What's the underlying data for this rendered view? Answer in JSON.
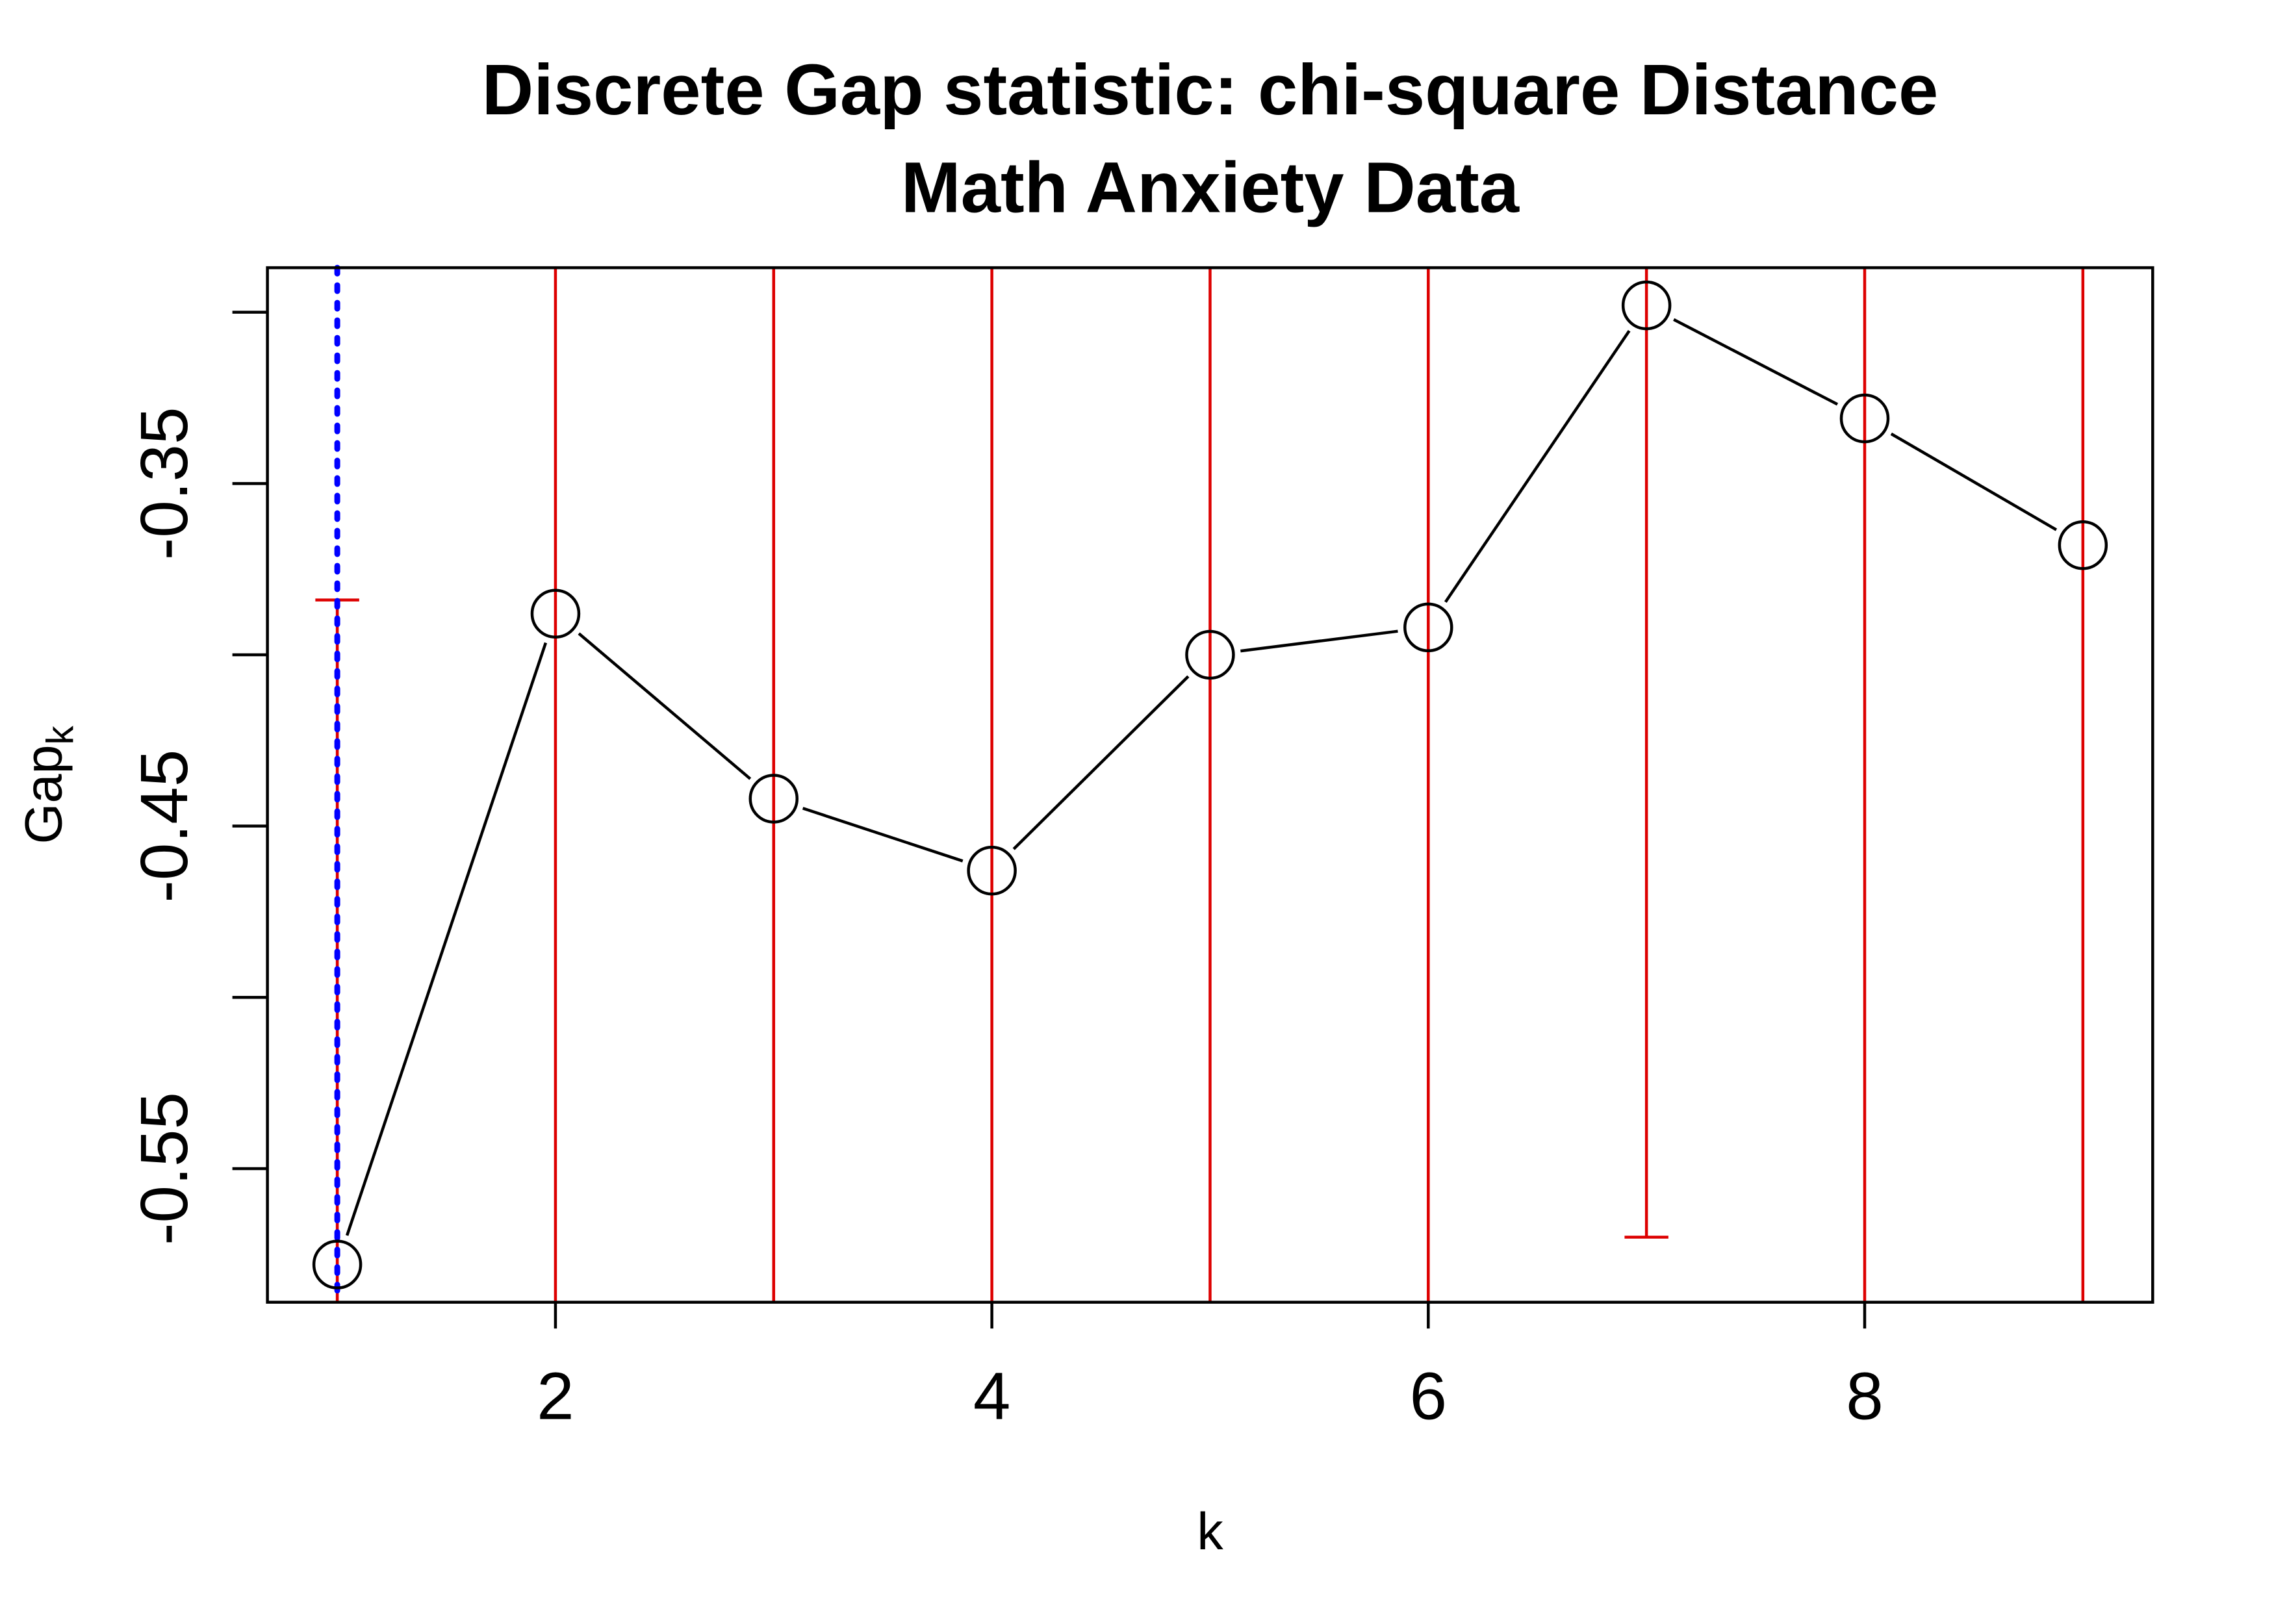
{
  "chart_data": {
    "type": "line",
    "title": "Discrete Gap statistic: chi-square Distance",
    "subtitle": "Math Anxiety Data",
    "xlabel": "k",
    "ylabel": "Gap",
    "ylabel_subscript": "k",
    "xlim": [
      0.68,
      9.32
    ],
    "ylim": [
      -0.589,
      -0.287
    ],
    "x_ticks": [
      2,
      4,
      6,
      8
    ],
    "x_tick_labels": [
      "2",
      "4",
      "6",
      "8"
    ],
    "y_ticks": [
      -0.3,
      -0.35,
      -0.4,
      -0.45,
      -0.5,
      -0.55
    ],
    "y_tick_labels": [
      "",
      "-0.35",
      "",
      "-0.45",
      "",
      "-0.55"
    ],
    "grid": false,
    "x": [
      1,
      2,
      3,
      4,
      5,
      6,
      7,
      8,
      9
    ],
    "y": [
      -0.578,
      -0.388,
      -0.442,
      -0.463,
      -0.4,
      -0.392,
      -0.298,
      -0.331,
      -0.368
    ],
    "series_color": "#000000",
    "marker": "open-circle",
    "error_bars": {
      "color": "#dd0000",
      "note_clipped": "bars extending beyond the plot region are clipped at the frame",
      "items": [
        {
          "k": 1,
          "lower": null,
          "upper": -0.384
        },
        {
          "k": 2,
          "lower": null,
          "upper": null
        },
        {
          "k": 3,
          "lower": null,
          "upper": null
        },
        {
          "k": 4,
          "lower": null,
          "upper": null
        },
        {
          "k": 5,
          "lower": null,
          "upper": null
        },
        {
          "k": 6,
          "lower": null,
          "upper": null
        },
        {
          "k": 7,
          "lower": -0.57,
          "upper": null
        },
        {
          "k": 8,
          "lower": null,
          "upper": null
        },
        {
          "k": 9,
          "lower": null,
          "upper": null
        }
      ]
    },
    "selected_k": 1,
    "selected_line_color": "#0000ff",
    "selected_line_style": "dotted"
  }
}
